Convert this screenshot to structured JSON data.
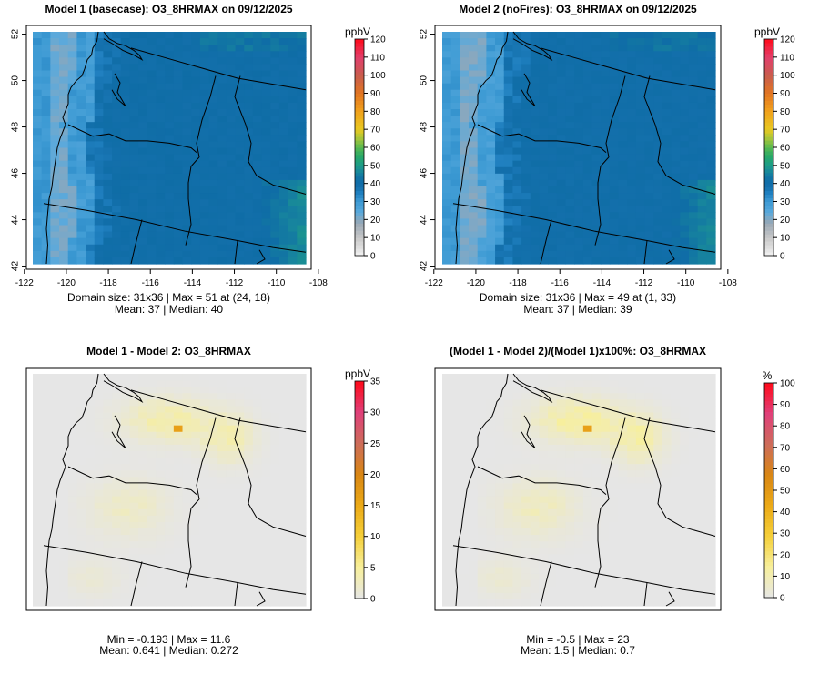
{
  "figure": {
    "panels": [
      {
        "id": "model1",
        "title": "Model 1 (basecase): O3_8HRMAX on 09/12/2025",
        "stats_line1": "Domain size: 31x36 | Max = 51 at (24, 18)",
        "stats_line2": "Mean: 37 |  Median: 40",
        "x_ticks": [
          "-122",
          "-120",
          "-118",
          "-116",
          "-114",
          "-112",
          "-110",
          "-108"
        ],
        "y_ticks": [
          "42",
          "44",
          "46",
          "48",
          "50",
          "52"
        ],
        "colorbar": {
          "unit": "ppbV",
          "min": 0,
          "max": 120,
          "tick_values": [
            0,
            10,
            20,
            30,
            40,
            50,
            60,
            70,
            80,
            90,
            100,
            110,
            120
          ],
          "tick_labels": [
            "0",
            "10",
            "20",
            "30",
            "40",
            "50",
            "60",
            "70",
            "80",
            "90",
            "100",
            "110",
            "120"
          ]
        }
      },
      {
        "id": "model2",
        "title": "Model 2 (noFires): O3_8HRMAX on 09/12/2025",
        "stats_line1": "Domain size: 31x36 | Max = 49 at (1, 33)",
        "stats_line2": "Mean: 37 |  Median: 39",
        "x_ticks": [
          "-122",
          "-120",
          "-118",
          "-116",
          "-114",
          "-112",
          "-110",
          "-108"
        ],
        "y_ticks": [
          "42",
          "44",
          "46",
          "48",
          "50",
          "52"
        ],
        "colorbar": {
          "unit": "ppbV",
          "min": 0,
          "max": 120,
          "tick_values": [
            0,
            10,
            20,
            30,
            40,
            50,
            60,
            70,
            80,
            90,
            100,
            110,
            120
          ],
          "tick_labels": [
            "0",
            "10",
            "20",
            "30",
            "40",
            "50",
            "60",
            "70",
            "80",
            "90",
            "100",
            "110",
            "120"
          ]
        }
      },
      {
        "id": "diff",
        "title": "Model 1 - Model 2: O3_8HRMAX",
        "stats_line1": "Min = -0.193 | Max = 11.6",
        "stats_line2": "Mean: 0.641 |  Median: 0.272",
        "colorbar": {
          "unit": "ppbV",
          "min": 0,
          "max": 35,
          "tick_values": [
            0,
            5,
            10,
            15,
            20,
            25,
            30,
            35
          ],
          "tick_labels": [
            "0",
            "5",
            "10",
            "15",
            "20",
            "25",
            "30",
            "35"
          ]
        }
      },
      {
        "id": "pctdiff",
        "title": "(Model 1 - Model 2)/(Model 1)x100%: O3_8HRMAX",
        "stats_line1": "Min = -0.5 | Max = 23",
        "stats_line2": "Mean: 1.5 |  Median: 0.7",
        "colorbar": {
          "unit": "%",
          "min": 0,
          "max": 100,
          "tick_values": [
            0,
            10,
            20,
            30,
            40,
            50,
            60,
            70,
            80,
            90,
            100
          ],
          "tick_labels": [
            "0",
            "10",
            "20",
            "30",
            "40",
            "50",
            "60",
            "70",
            "80",
            "90",
            "100"
          ]
        }
      }
    ]
  },
  "chart_data": [
    {
      "type": "heatmap",
      "title": "Model 1 (basecase): O3_8HRMAX on 09/12/2025",
      "variable": "O3_8HRMAX",
      "units": "ppbV",
      "grid": [
        31,
        36
      ],
      "xlim": [
        -121.6,
        -108.6
      ],
      "ylim": [
        42.1,
        52.1
      ],
      "max": 51,
      "max_at": [
        24,
        18
      ],
      "mean": 37,
      "median": 40
    },
    {
      "type": "heatmap",
      "title": "Model 2 (noFires): O3_8HRMAX on 09/12/2025",
      "variable": "O3_8HRMAX",
      "units": "ppbV",
      "grid": [
        31,
        36
      ],
      "xlim": [
        -121.6,
        -108.6
      ],
      "ylim": [
        42.1,
        52.1
      ],
      "max": 49,
      "max_at": [
        1,
        33
      ],
      "mean": 37,
      "median": 39
    },
    {
      "type": "heatmap",
      "title": "Model 1 - Model 2: O3_8HRMAX",
      "units": "ppbV",
      "min": -0.193,
      "max": 11.6,
      "mean": 0.641,
      "median": 0.272
    },
    {
      "type": "heatmap",
      "title": "(Model 1 - Model 2)/(Model 1)x100%: O3_8HRMAX",
      "units": "%",
      "min": -0.5,
      "max": 23,
      "mean": 1.5,
      "median": 0.7
    }
  ],
  "colors": {
    "ocean_gray": "#8a9eae",
    "land_blue": "#1a72ab",
    "coast_light": "#4ea3d6",
    "diff_background": "#e6e6e6",
    "diff_hot": "#e8a018"
  }
}
